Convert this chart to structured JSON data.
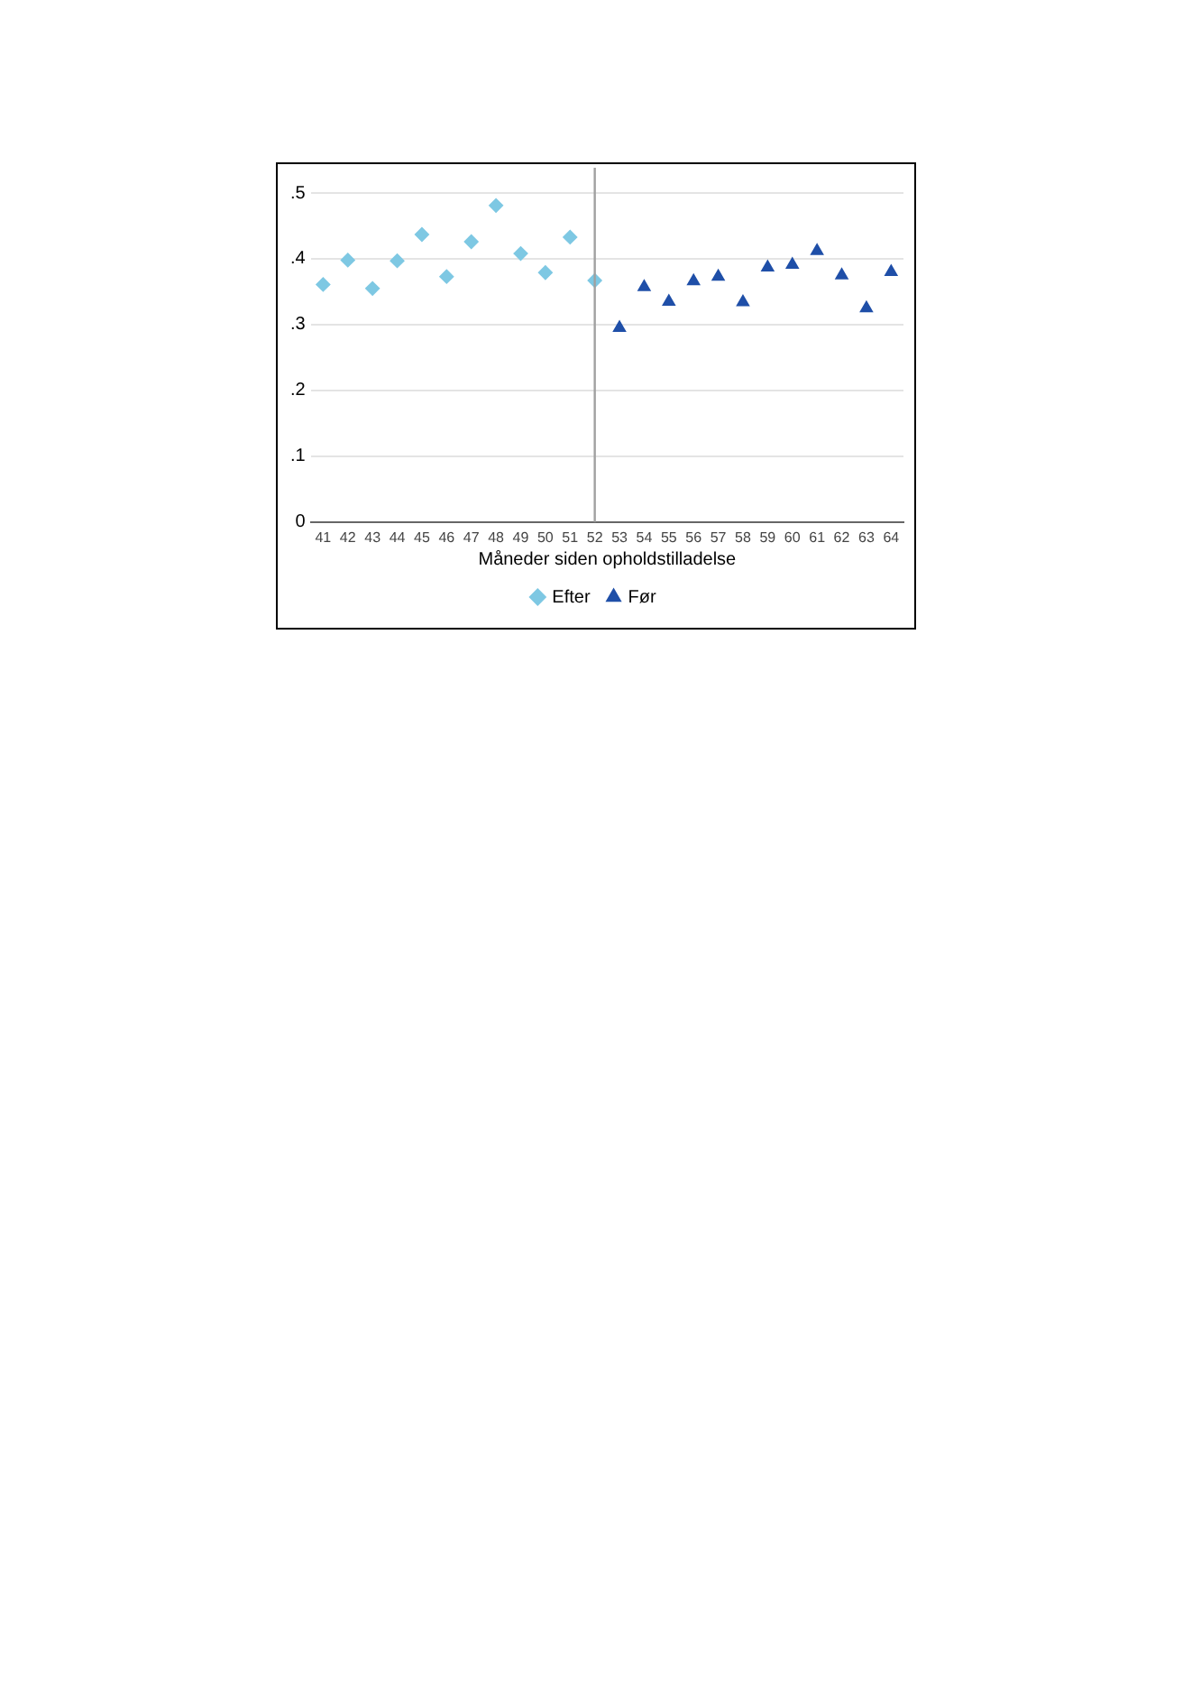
{
  "chart_data": {
    "type": "scatter",
    "xlabel": "Måneder siden opholdstilladelse",
    "xlim": [
      40.5,
      64.5
    ],
    "xticks": [
      41,
      42,
      43,
      44,
      45,
      46,
      47,
      48,
      49,
      50,
      51,
      52,
      53,
      54,
      55,
      56,
      57,
      58,
      59,
      60,
      61,
      62,
      63,
      64
    ],
    "ylim": [
      0,
      0.5
    ],
    "yticks": [
      0,
      {
        "value": 0.1,
        "label": ".1"
      },
      {
        "value": 0.2,
        "label": ".2"
      },
      {
        "value": 0.3,
        "label": ".3"
      },
      {
        "value": 0.4,
        "label": ".4"
      },
      {
        "value": 0.5,
        "label": ".5"
      }
    ],
    "grid": "y",
    "legend": "bottom",
    "ref_lines": [
      {
        "axis": "x",
        "value": 52,
        "color": "#a0a0a0"
      }
    ],
    "series": [
      {
        "name": "Efter",
        "color": "#7ec8e3",
        "marker": "diamond",
        "x": [
          41,
          42,
          43,
          44,
          45,
          46,
          47,
          48,
          49,
          50,
          51,
          52
        ],
        "values": [
          0.361,
          0.398,
          0.355,
          0.397,
          0.437,
          0.373,
          0.426,
          0.481,
          0.408,
          0.379,
          0.433,
          0.367
        ]
      },
      {
        "name": "Før",
        "color": "#1f4fa8",
        "marker": "triangle",
        "x": [
          53,
          54,
          55,
          56,
          57,
          58,
          59,
          60,
          61,
          62,
          63,
          64
        ],
        "values": [
          0.295,
          0.357,
          0.335,
          0.366,
          0.373,
          0.334,
          0.387,
          0.391,
          0.412,
          0.375,
          0.325,
          0.38
        ]
      }
    ]
  }
}
